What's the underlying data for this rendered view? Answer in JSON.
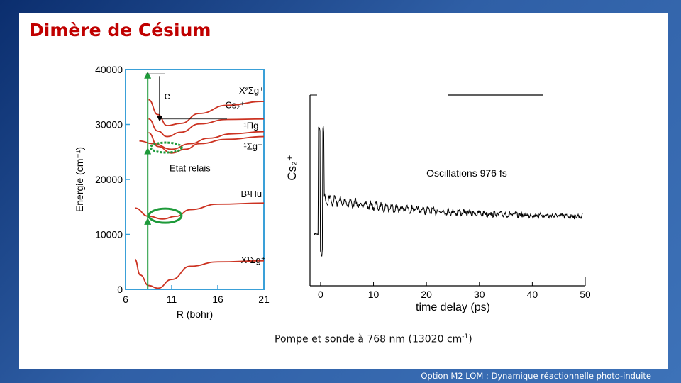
{
  "slide": {
    "title": "Dimère de Césium",
    "footer": "Option M2 LOM : Dynamique réactionnelle photo-induite",
    "pump_probe": {
      "prefix": "Pompe et sonde à 768 nm (13020 cm",
      "sup": "-1",
      "suffix": ")"
    }
  },
  "colors": {
    "title": "#c00000",
    "curves": "#cc3322",
    "arrows": "#1e9a3a",
    "axis_box": "#3aa0d8"
  },
  "chart_data": [
    {
      "type": "line",
      "ylabel": "Energie (cm⁻¹)",
      "xlabel": "R (bohr)",
      "xlim": [
        6,
        21
      ],
      "ylim": [
        0,
        40000
      ],
      "xticks": [
        6,
        11,
        16,
        21
      ],
      "yticks": [
        0,
        10000,
        20000,
        30000,
        40000
      ],
      "state_labels": [
        "X²Σg⁺",
        "Cs₂⁺",
        "¹Πg",
        "¹Σg⁺",
        "B¹Πu",
        "X¹Σg⁺"
      ],
      "energy_label": "e",
      "annotation": "Etat relais",
      "series": [
        {
          "points": [
            [
              8.5,
              34500
            ],
            [
              9.5,
              31800
            ],
            [
              10.5,
              29800
            ],
            [
              12,
              30200
            ],
            [
              14,
              32000
            ],
            [
              17,
              33500
            ],
            [
              21,
              34200
            ]
          ]
        },
        {
          "points": [
            [
              8.5,
              31000
            ],
            [
              9.5,
              28800
            ],
            [
              10.5,
              27800
            ],
            [
              12,
              28600
            ],
            [
              14,
              30100
            ],
            [
              17,
              30900
            ],
            [
              21,
              31000
            ]
          ]
        },
        {
          "points": [
            [
              8.5,
              28500
            ],
            [
              9.5,
              26000
            ],
            [
              11,
              24800
            ],
            [
              12.5,
              25500
            ],
            [
              14,
              26500
            ],
            [
              17,
              27300
            ],
            [
              21,
              27800
            ]
          ]
        },
        {
          "points": [
            [
              7.5,
              27000
            ],
            [
              9,
              26500
            ],
            [
              11,
              25500
            ],
            [
              13,
              26500
            ],
            [
              15,
              27500
            ],
            [
              17.5,
              28300
            ],
            [
              21,
              28700
            ]
          ]
        },
        {
          "points": [
            [
              7,
              14800
            ],
            [
              8.5,
              13300
            ],
            [
              10,
              12800
            ],
            [
              11.5,
              13300
            ],
            [
              13,
              14500
            ],
            [
              16,
              15500
            ],
            [
              21,
              15700
            ]
          ]
        },
        {
          "points": [
            [
              7,
              5500
            ],
            [
              7.6,
              2600
            ],
            [
              8.5,
              700
            ],
            [
              9.5,
              200
            ],
            [
              11,
              1800
            ],
            [
              13,
              4200
            ],
            [
              16,
              5000
            ],
            [
              21,
              5200
            ]
          ]
        }
      ]
    },
    {
      "type": "line",
      "xlabel": "time delay (ps)",
      "ylabel": "Cs₂⁺",
      "xlim": [
        -2,
        50
      ],
      "xticks": [
        0,
        10,
        20,
        30,
        40,
        50
      ],
      "annotation": "Oscillations 976 fs",
      "oscillation_period_fs": 976
    }
  ]
}
